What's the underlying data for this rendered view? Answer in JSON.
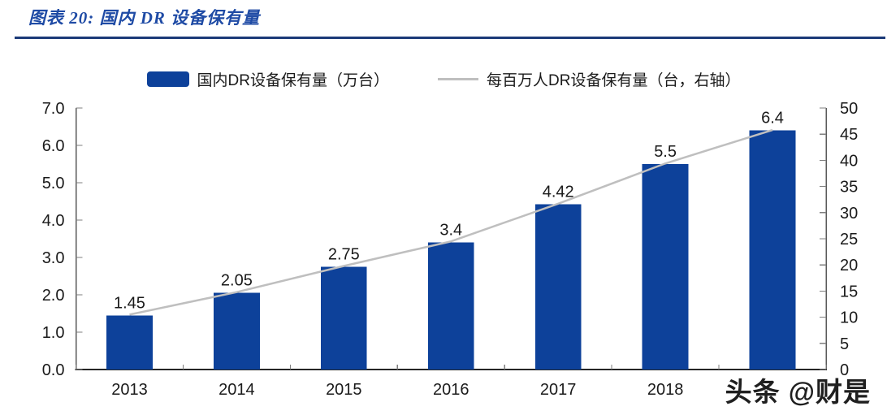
{
  "header": {
    "title": "图表 20:  国内 DR 设备保有量"
  },
  "legend": {
    "bars_label": "国内DR设备保有量（万台）",
    "line_label": "每百万人DR设备保有量（台，右轴）"
  },
  "watermark": "头条 @财是",
  "colors": {
    "bar": "#0d419a",
    "line": "#bfbfbf",
    "title": "#1f4ba5",
    "divider": "#1b3a78",
    "axis_line": "#595959",
    "bottom_axis": "#262626",
    "tick": "#7f7f7f",
    "text": "#1a1a1a"
  },
  "chart_data": {
    "type": "bar+line combo",
    "categories": [
      "2013",
      "2014",
      "2015",
      "2016",
      "2017",
      "2018",
      ""
    ],
    "series": [
      {
        "name": "国内DR设备保有量（万台）",
        "type": "bar",
        "axis": "left",
        "values": [
          1.45,
          2.05,
          2.75,
          3.4,
          4.42,
          5.5,
          6.4
        ],
        "labels": [
          "1.45",
          "2.05",
          "2.75",
          "3.4",
          "4.42",
          "5.5",
          "6.4"
        ]
      },
      {
        "name": "每百万人DR设备保有量（台，右轴）",
        "type": "line",
        "axis": "right",
        "values": [
          10.5,
          14.8,
          19.8,
          24.5,
          31.7,
          39.4,
          45.8
        ]
      }
    ],
    "left_axis": {
      "min": 0,
      "max": 7,
      "step": 1,
      "ticks": [
        "0.0",
        "1.0",
        "2.0",
        "3.0",
        "4.0",
        "5.0",
        "6.0",
        "7.0"
      ]
    },
    "right_axis": {
      "min": 0,
      "max": 50,
      "step": 5,
      "ticks": [
        "0",
        "5",
        "10",
        "15",
        "20",
        "25",
        "30",
        "35",
        "40",
        "45",
        "50"
      ]
    },
    "grid": false,
    "legend_position": "top"
  }
}
